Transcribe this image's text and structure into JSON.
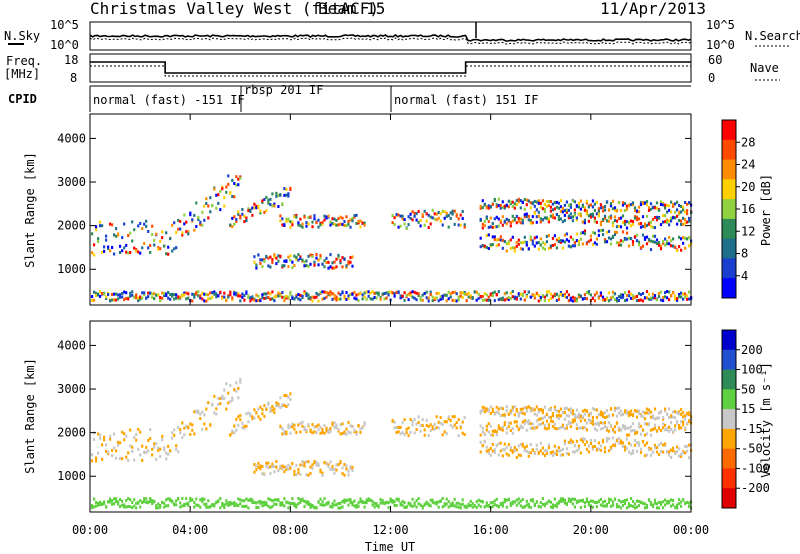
{
  "header": {
    "title": "Christmas Valley West (fitACF)",
    "beam": "Beam 15",
    "date": "11/Apr/2013"
  },
  "noise_panel": {
    "left_label": "N.Sky",
    "right_label": "N.Search",
    "ticks": [
      "10^5",
      "10^0"
    ]
  },
  "freq_panel": {
    "left_label_1": "Freq.",
    "left_label_2": "[MHz]",
    "left_ticks": [
      "18",
      "8"
    ],
    "right_label": "Nave",
    "right_ticks": [
      "60",
      "0"
    ]
  },
  "cpid": {
    "label": "CPID",
    "segments": [
      "normal (fast) -151 IF",
      "rbsp 201 IF",
      "normal (fast) 151 IF"
    ]
  },
  "colorbar_power": {
    "label": "Power [dB]",
    "ticks": [
      "28",
      "24",
      "20",
      "16",
      "12",
      "8",
      "4"
    ],
    "colors": [
      "#ff0000",
      "#ff4a00",
      "#ff8c00",
      "#ffd000",
      "#8fd13f",
      "#2e8b57",
      "#1f6f8b",
      "#1a3fcf",
      "#0000ff"
    ]
  },
  "colorbar_velocity": {
    "label": "Velocity [m s⁻¹]",
    "ticks": [
      "200",
      "100",
      "50",
      "15",
      "-15",
      "-50",
      "-100",
      "-200"
    ],
    "colors": [
      "#0000cc",
      "#2050d0",
      "#2e8b57",
      "#5fd03f",
      "#c8c8c8",
      "#ffa500",
      "#ff6a00",
      "#ff3000",
      "#e00000"
    ]
  },
  "chart_data": [
    {
      "type": "heatmap",
      "title": "",
      "xlabel": "Time UT",
      "ylabel": "Slant Range [km]",
      "x_ticks": [
        "00:00",
        "04:00",
        "08:00",
        "12:00",
        "16:00",
        "20:00",
        "00:00"
      ],
      "y_ticks": [
        1000,
        2000,
        3000,
        4000
      ],
      "xlim_hours": [
        0,
        24
      ],
      "ylim_km": [
        180,
        4560
      ],
      "colorbar_label": "Power [dB]",
      "colorbar_range": [
        0,
        30
      ]
    },
    {
      "type": "heatmap",
      "title": "",
      "xlabel": "Time UT",
      "ylabel": "Slant Range [km]",
      "x_ticks": [
        "00:00",
        "04:00",
        "08:00",
        "12:00",
        "16:00",
        "20:00",
        "00:00"
      ],
      "y_ticks": [
        1000,
        2000,
        3000,
        4000
      ],
      "xlim_hours": [
        0,
        24
      ],
      "ylim_km": [
        180,
        4560
      ],
      "colorbar_label": "Velocity [m s⁻¹]",
      "colorbar_range": [
        -200,
        200
      ]
    }
  ]
}
